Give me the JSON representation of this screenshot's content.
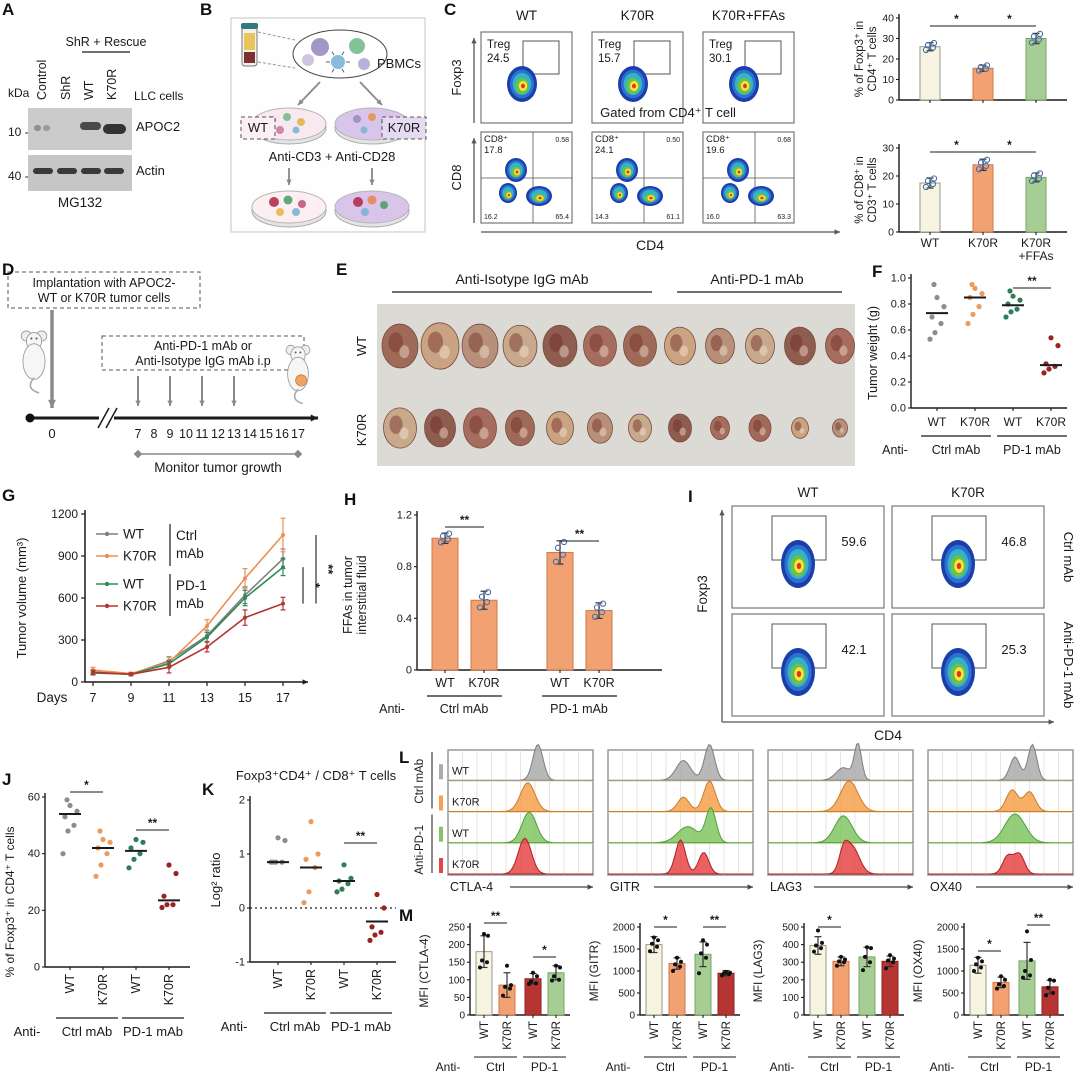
{
  "colors": {
    "cream": "#f7f4e2",
    "creamStroke": "#9a9a88",
    "orange": "#f2a173",
    "orangeStroke": "#cf7746",
    "green": "#a6cd94",
    "greenStroke": "#78a566",
    "darkred": "#b63532",
    "darkredStroke": "#8c2220",
    "dotBlue": "#4a6fa5",
    "grayLine": "#7f7f7f",
    "orangeLine": "#e89150",
    "greenLine": "#2e8b57",
    "redLine": "#b5342f",
    "grayDot": "#8c8c8c",
    "orangeDot": "#ed9a5f",
    "greenDot": "#2f7d5b",
    "darkredDot": "#9c2121",
    "histGray": "#ababab",
    "histGrayStroke": "#7d7d7d",
    "histOrange": "#f6a14e",
    "histOrangeStroke": "#c87d28",
    "histGreen": "#82c564",
    "histGreenStroke": "#4e9e3a",
    "histRed": "#e54545",
    "histRedStroke": "#b02020"
  },
  "panelA": {
    "label": "A",
    "group_line": "ShR + Rescue",
    "kda": "kDa",
    "lanes": [
      "Control",
      "ShR",
      "WT",
      "K70R"
    ],
    "cells": "LLC cells",
    "marker_10": "10 -",
    "marker_40": "40 -",
    "band1": "APOC2",
    "band2": "Actin",
    "treatment": "MG132"
  },
  "panelB": {
    "label": "B",
    "pbmcs": "PBMCs",
    "wt": "WT",
    "k70r": "K70R",
    "stim": "Anti-CD3 + Anti-CD28"
  },
  "panelC": {
    "label": "C",
    "cols": [
      "WT",
      "K70R",
      "K70R+FFAs"
    ],
    "yaxis_top": "Foxp3",
    "yaxis_bottom": "CD8",
    "xaxis": "CD4",
    "gate_label": "Treg",
    "treg_values": [
      "24.5",
      "15.7",
      "30.1"
    ],
    "gated_note": "Gated from CD4⁺ T cell",
    "cd8_label": "CD8⁺",
    "quad": [
      {
        "cd8": "17.8",
        "tr": "0.58",
        "bl": "16.2",
        "br": "65.4"
      },
      {
        "cd8": "24.1",
        "tr": "0.50",
        "bl": "14.3",
        "br": "61.1"
      },
      {
        "cd8": "19.6",
        "tr": "0.68",
        "bl": "16.0",
        "br": "63.3"
      }
    ],
    "bar1": {
      "ylabel1": "% of Foxp3⁺ in",
      "ylabel2": "CD4⁺ T cells",
      "ymax": 40,
      "yticks": [
        0,
        10,
        20,
        30,
        40
      ],
      "values": [
        26,
        15.5,
        30
      ],
      "errs": [
        2,
        1.5,
        2.5
      ],
      "sigs": [
        {
          "a": 0,
          "b": 1,
          "t": "*",
          "y": 26
        },
        {
          "a": 1,
          "b": 2,
          "t": "*",
          "y": 26
        }
      ]
    },
    "bar2": {
      "ylabel1": "% of CD8⁺ in",
      "ylabel2": "CD3⁺ T cells",
      "ymax": 30,
      "yticks": [
        0,
        10,
        20,
        30
      ],
      "values": [
        17.5,
        24,
        19.5
      ],
      "errs": [
        1.8,
        2,
        1.6
      ],
      "sigs": [
        {
          "a": 0,
          "b": 1,
          "t": "*",
          "y": 152
        },
        {
          "a": 1,
          "b": 2,
          "t": "*",
          "y": 152
        }
      ]
    },
    "bar_xlabels": [
      "WT",
      "K70R",
      "K70R"
    ],
    "bar_xlabel_extra": "+FFAs",
    "bar_fills": [
      "cream",
      "orange",
      "green"
    ],
    "bar_strokes": [
      "creamStroke",
      "orangeStroke",
      "greenStroke"
    ]
  },
  "panelD": {
    "label": "D",
    "box1a": "Implantation with APOC2-",
    "box1b": "WT or K70R tumor cells",
    "box2a": "Anti-PD-1 mAb or",
    "box2b": "Anti-Isotype IgG mAb i.p",
    "day0": "0",
    "days": [
      "7",
      "8",
      "9",
      "10",
      "11",
      "12",
      "13",
      "14",
      "15",
      "16",
      "17"
    ],
    "inject_days": [
      7,
      9,
      11,
      13
    ],
    "monitor": "Monitor tumor growth"
  },
  "panelE": {
    "label": "E",
    "header1": "Anti-Isotype IgG mAb",
    "header2": "Anti-PD-1 mAb",
    "rows": [
      "WT",
      "K70R"
    ],
    "tumor_row1": [
      36,
      38,
      36,
      34,
      34,
      33,
      33,
      31,
      29,
      29,
      31,
      29
    ],
    "tumor_row2": [
      33,
      31,
      33,
      29,
      27,
      25,
      23,
      23,
      19,
      22,
      17,
      15
    ]
  },
  "panelF": {
    "label": "F",
    "ylabel": "Tumor weight (g)",
    "yticks": [
      "0.0",
      "0.2",
      "0.4",
      "0.6",
      "0.8",
      "1.0"
    ],
    "ymax": 1,
    "groups": [
      {
        "label": "WT",
        "color": "grayDot",
        "dots": [
          0.53,
          0.58,
          0.65,
          0.7,
          0.78,
          0.85,
          0.95
        ],
        "median": 0.73
      },
      {
        "label": "K70R",
        "color": "orangeDot",
        "dots": [
          0.65,
          0.72,
          0.78,
          0.85,
          0.88,
          0.92,
          0.95
        ],
        "median": 0.85
      },
      {
        "label": "WT",
        "color": "greenDot",
        "dots": [
          0.7,
          0.74,
          0.76,
          0.8,
          0.83,
          0.86,
          0.9
        ],
        "median": 0.79
      },
      {
        "label": "K70R",
        "color": "darkredDot",
        "dots": [
          0.27,
          0.3,
          0.32,
          0.34,
          0.48,
          0.54
        ],
        "median": 0.33
      }
    ],
    "sigs": [
      {
        "a": 2,
        "b": 3,
        "t": "**",
        "y": 30
      }
    ],
    "anti": "Anti-",
    "grp1": "Ctrl mAb",
    "grp2": "PD-1 mAb"
  },
  "panelG": {
    "label": "G",
    "ylabel": "Tumor volume (mm³)",
    "xlabel": "Days",
    "yticks": [
      0,
      300,
      600,
      900,
      1200
    ],
    "days": [
      7,
      9,
      11,
      13,
      15,
      17
    ],
    "series": [
      {
        "label": "WT",
        "group": "Ctrl mAb",
        "color": "grayLine",
        "values": [
          70,
          55,
          150,
          330,
          620,
          880
        ],
        "errs": [
          15,
          10,
          30,
          40,
          60,
          70
        ]
      },
      {
        "label": "K70R",
        "group": "Ctrl mAb",
        "color": "orangeLine",
        "values": [
          85,
          60,
          140,
          400,
          740,
          1050
        ],
        "errs": [
          20,
          10,
          35,
          45,
          70,
          120
        ]
      },
      {
        "label": "WT",
        "group": "PD-1 mAb",
        "color": "greenLine",
        "values": [
          65,
          55,
          130,
          320,
          600,
          820
        ],
        "errs": [
          15,
          10,
          25,
          35,
          55,
          60
        ]
      },
      {
        "label": "K70R",
        "group": "PD-1 mAb",
        "color": "redLine",
        "values": [
          70,
          55,
          105,
          250,
          460,
          560
        ],
        "errs": [
          15,
          10,
          40,
          35,
          55,
          45
        ]
      }
    ],
    "legend_groups": [
      [
        "Ctrl",
        "mAb"
      ],
      [
        "PD-1",
        "mAb"
      ]
    ],
    "sig_inner": "*",
    "sig_outer": "**"
  },
  "panelH": {
    "label": "H",
    "ylabel1": "FFAs in tumor",
    "ylabel2": "interstitial fluid",
    "yticks": [
      "0",
      "0.4",
      "0.8",
      "1.2"
    ],
    "ymax": 1.2,
    "values": [
      1.02,
      0.54,
      0.91,
      0.46
    ],
    "errs": [
      0.04,
      0.07,
      0.09,
      0.06
    ],
    "xlabels": [
      "WT",
      "K70R",
      "WT",
      "K70R"
    ],
    "sigs": [
      {
        "a": 0,
        "b": 1,
        "t": "**",
        "y": 42
      },
      {
        "a": 2,
        "b": 3,
        "t": "**",
        "y": 56
      }
    ],
    "anti": "Anti-",
    "grp1": "Ctrl mAb",
    "grp2": "PD-1 mAb"
  },
  "panelI": {
    "label": "I",
    "cols": [
      "WT",
      "K70R"
    ],
    "rows": [
      "Ctrl mAb",
      "Anti-PD-1 mAb"
    ],
    "values": [
      [
        "59.6",
        "46.8"
      ],
      [
        "42.1",
        "25.3"
      ]
    ],
    "yaxis": "Foxp3",
    "xaxis": "CD4"
  },
  "panelJ": {
    "label": "J",
    "ylabel": "% of Foxp3⁺ in CD4⁺ T cells",
    "yticks": [
      0,
      20,
      40,
      60
    ],
    "ymax": 60,
    "groups": [
      {
        "label": "WT",
        "color": "grayDot",
        "dots": [
          40,
          48,
          50,
          53,
          55,
          57,
          59
        ],
        "median": 54
      },
      {
        "label": "K70R",
        "color": "orangeDot",
        "dots": [
          32,
          36,
          40,
          42,
          44,
          45,
          48
        ],
        "median": 42
      },
      {
        "label": "WT",
        "color": "greenDot",
        "dots": [
          35,
          38,
          40,
          42,
          44,
          45
        ],
        "median": 41
      },
      {
        "label": "K70R",
        "color": "darkredDot",
        "dots": [
          21,
          22,
          22,
          25,
          33,
          36
        ],
        "median": 23.5
      }
    ],
    "sigs": [
      {
        "a": 0,
        "b": 1,
        "t": "*",
        "y": 40
      },
      {
        "a": 2,
        "b": 3,
        "t": "**",
        "y": 78
      }
    ],
    "anti": "Anti-",
    "grp1": "Ctrl mAb",
    "grp2": "PD-1 mAb"
  },
  "panelK": {
    "label": "K",
    "title": "Foxp3⁺CD4⁺ / CD8⁺ T cells",
    "ylabel": "Log² ratio",
    "yticks": [
      -1,
      0,
      1,
      2
    ],
    "ymin": -1,
    "ymax": 2,
    "groups": [
      {
        "label": "WT",
        "color": "grayDot",
        "dots": [
          0.85,
          0.85,
          0.85,
          0.85,
          1.25,
          1.3
        ],
        "median": 0.85
      },
      {
        "label": "K70R",
        "color": "orangeDot",
        "dots": [
          0.1,
          0.3,
          0.75,
          0.9,
          1.0,
          1.6
        ],
        "median": 0.75
      },
      {
        "label": "WT",
        "color": "greenDot",
        "dots": [
          0.3,
          0.35,
          0.45,
          0.5,
          0.55,
          0.8
        ],
        "median": 0.5
      },
      {
        "label": "K70R",
        "color": "darkredDot",
        "dots": [
          -0.6,
          -0.5,
          -0.45,
          -0.35,
          0.0,
          0.25
        ],
        "median": -0.25
      }
    ],
    "sigs": [
      {
        "a": 2,
        "b": 3,
        "t": "**",
        "y": 91
      }
    ],
    "anti": "Anti-",
    "grp1": "Ctrl mAb",
    "grp2": "PD-1 mAb"
  },
  "panelL": {
    "label": "L",
    "markers": [
      "CTLA-4",
      "GITR",
      "LAG3",
      "OX40"
    ],
    "row_labels": [
      "WT",
      "K70R",
      "WT",
      "K70R"
    ],
    "group_labels": [
      "Ctrl mAb",
      "Anti-PD-1"
    ],
    "row_colors": [
      "histGray",
      "histOrange",
      "histGreen",
      "histRed"
    ],
    "row_strokes": [
      "histGrayStroke",
      "histOrangeStroke",
      "histGreenStroke",
      "histRedStroke"
    ],
    "hist": {
      "CTLA-4": [
        [
          {
            "m": 0.62,
            "h": 1.0,
            "s": 0.035
          }
        ],
        [
          {
            "m": 0.55,
            "h": 0.8,
            "s": 0.05
          }
        ],
        [
          {
            "m": 0.56,
            "h": 0.85,
            "s": 0.05
          }
        ],
        [
          {
            "m": 0.53,
            "h": 1.0,
            "s": 0.045
          }
        ]
      ],
      "GITR": [
        [
          {
            "m": 0.52,
            "h": 0.55,
            "s": 0.05
          },
          {
            "m": 0.7,
            "h": 1.0,
            "s": 0.035
          }
        ],
        [
          {
            "m": 0.52,
            "h": 0.4,
            "s": 0.04
          },
          {
            "m": 0.7,
            "h": 0.85,
            "s": 0.04
          }
        ],
        [
          {
            "m": 0.55,
            "h": 0.45,
            "s": 0.07
          },
          {
            "m": 0.71,
            "h": 0.95,
            "s": 0.035
          }
        ],
        [
          {
            "m": 0.5,
            "h": 0.95,
            "s": 0.035
          },
          {
            "m": 0.66,
            "h": 0.6,
            "s": 0.035
          }
        ]
      ],
      "LAG3": [
        [
          {
            "m": 0.52,
            "h": 0.35,
            "s": 0.05
          },
          {
            "m": 0.62,
            "h": 1.0,
            "s": 0.025
          }
        ],
        [
          {
            "m": 0.56,
            "h": 0.85,
            "s": 0.06
          }
        ],
        [
          {
            "m": 0.52,
            "h": 0.75,
            "s": 0.06
          }
        ],
        [
          {
            "m": 0.52,
            "h": 0.5,
            "s": 0.03
          },
          {
            "m": 0.58,
            "h": 0.75,
            "s": 0.05
          }
        ]
      ],
      "OX40": [
        [
          {
            "m": 0.6,
            "h": 0.65,
            "s": 0.035
          },
          {
            "m": 0.72,
            "h": 1.0,
            "s": 0.03
          }
        ],
        [
          {
            "m": 0.58,
            "h": 0.6,
            "s": 0.04
          },
          {
            "m": 0.7,
            "h": 0.55,
            "s": 0.04
          }
        ],
        [
          {
            "m": 0.6,
            "h": 0.8,
            "s": 0.07
          }
        ],
        [
          {
            "m": 0.55,
            "h": 0.5,
            "s": 0.035
          },
          {
            "m": 0.63,
            "h": 0.55,
            "s": 0.035
          }
        ]
      ]
    }
  },
  "panelM": {
    "label": "M",
    "charts": [
      {
        "ylabel": "MFI (CTLA-4)",
        "ymax": 250,
        "yticks": [
          0,
          50,
          100,
          150,
          200,
          250
        ],
        "values": [
          180,
          85,
          103,
          120
        ],
        "errs": [
          45,
          35,
          15,
          20
        ],
        "colors": [
          "cream",
          "orange",
          "darkred",
          "green"
        ],
        "dots": [
          [
            135,
            150,
            155,
            225,
            230
          ],
          [
            55,
            75,
            80,
            85,
            140
          ],
          [
            88,
            90,
            95,
            110,
            120
          ],
          [
            98,
            100,
            110,
            135,
            140
          ]
        ],
        "sigs": [
          {
            "a": 0,
            "b": 1,
            "t": "**",
            "y": 8
          },
          {
            "a": 2,
            "b": 3,
            "t": "*",
            "y": 42
          }
        ]
      },
      {
        "ylabel": "MFI (GITR)",
        "ymax": 2000,
        "yticks": [
          0,
          500,
          1000,
          1500,
          2000
        ],
        "values": [
          1600,
          1170,
          1380,
          950
        ],
        "errs": [
          180,
          130,
          280,
          60
        ],
        "colors": [
          "cream",
          "orange",
          "green",
          "darkred"
        ],
        "dots": [
          [
            1450,
            1550,
            1620,
            1700,
            1760
          ],
          [
            1000,
            1100,
            1150,
            1210,
            1300
          ],
          [
            950,
            1300,
            1400,
            1600,
            1700
          ],
          [
            900,
            930,
            950,
            960,
            980
          ]
        ],
        "sigs": [
          {
            "a": 0,
            "b": 1,
            "t": "*",
            "y": 12
          },
          {
            "a": 2,
            "b": 3,
            "t": "**",
            "y": 12
          }
        ]
      },
      {
        "ylabel": "MFI (LAG3)",
        "ymax": 500,
        "yticks": [
          0,
          100,
          200,
          300,
          400,
          500
        ],
        "values": [
          395,
          305,
          330,
          305
        ],
        "errs": [
          50,
          25,
          55,
          30
        ],
        "colors": [
          "cream",
          "orange",
          "green",
          "darkred"
        ],
        "dots": [
          [
            360,
            380,
            395,
            410,
            480
          ],
          [
            280,
            300,
            305,
            315,
            330
          ],
          [
            255,
            300,
            330,
            380,
            385
          ],
          [
            265,
            300,
            310,
            320,
            340
          ]
        ],
        "sigs": [
          {
            "a": 0,
            "b": 1,
            "t": "*",
            "y": 12
          }
        ]
      },
      {
        "ylabel": "MFI (OX40)",
        "ymax": 2000,
        "yticks": [
          0,
          500,
          1000,
          1500,
          2000
        ],
        "values": [
          1130,
          740,
          1230,
          640
        ],
        "errs": [
          180,
          120,
          420,
          150
        ],
        "colors": [
          "cream",
          "orange",
          "green",
          "darkred"
        ],
        "dots": [
          [
            1000,
            1080,
            1150,
            1220,
            1300
          ],
          [
            600,
            660,
            700,
            800,
            880
          ],
          [
            850,
            900,
            1000,
            1250,
            1900
          ],
          [
            450,
            500,
            620,
            780,
            800
          ]
        ],
        "sigs": [
          {
            "a": 0,
            "b": 1,
            "t": "*",
            "y": 36
          },
          {
            "a": 2,
            "b": 3,
            "t": "**",
            "y": 10
          }
        ]
      }
    ],
    "xlabels": [
      "WT",
      "K70R",
      "WT",
      "K70R"
    ],
    "anti": "Anti-",
    "grp1": "Ctrl",
    "grp2": "PD-1"
  }
}
